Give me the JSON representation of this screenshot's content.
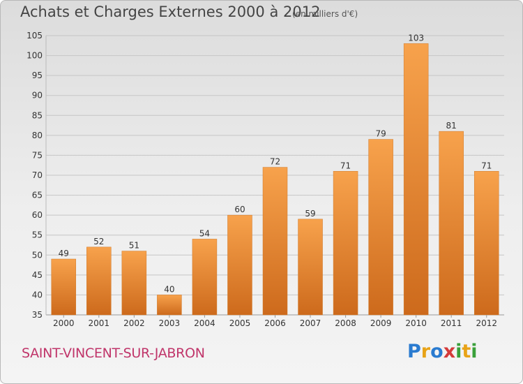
{
  "header": {
    "title": "Achats et Charges Externes 2000 à 2012",
    "unit": "(en milliers d'€)"
  },
  "footer": {
    "place": "SAINT-VINCENT-SUR-JABRON",
    "brand": "Proxiti",
    "brand_letters": [
      {
        "ch": "P",
        "color": "#2a7bd0"
      },
      {
        "ch": "r",
        "color": "#e8a317"
      },
      {
        "ch": "o",
        "color": "#2a7bd0"
      },
      {
        "ch": "x",
        "color": "#d43a3a"
      },
      {
        "ch": "i",
        "color": "#3aa03a"
      },
      {
        "ch": "t",
        "color": "#e8a317"
      },
      {
        "ch": "i",
        "color": "#3aa03a"
      }
    ]
  },
  "chart_data": {
    "type": "bar",
    "title": "Achats et Charges Externes 2000 à 2012",
    "subtitle": "(en milliers d'€)",
    "categories": [
      "2000",
      "2001",
      "2002",
      "2003",
      "2004",
      "2005",
      "2006",
      "2007",
      "2008",
      "2009",
      "2010",
      "2011",
      "2012"
    ],
    "values": [
      49,
      52,
      51,
      40,
      54,
      60,
      72,
      59,
      71,
      79,
      103,
      81,
      71
    ],
    "ylim": [
      35,
      105
    ],
    "yticks": [
      35,
      40,
      45,
      50,
      55,
      60,
      65,
      70,
      75,
      80,
      85,
      90,
      95,
      100,
      105
    ],
    "grid": true,
    "bar_color": "#f0953a",
    "bar_color_dark": "#c9691a"
  }
}
